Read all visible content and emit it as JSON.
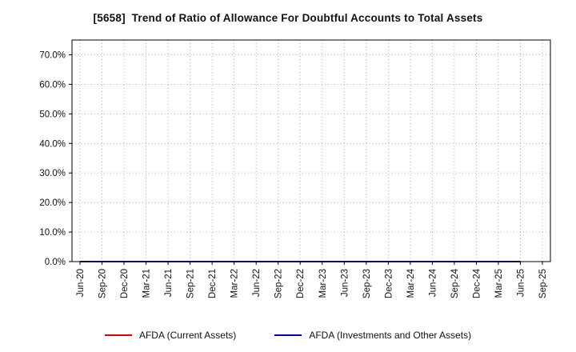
{
  "chart_data": {
    "type": "line",
    "title": "[5658]  Trend of Ratio of Allowance For Doubtful Accounts to Total Assets",
    "xlabel": "",
    "ylabel": "",
    "ylim": [
      0,
      75
    ],
    "yticks": [
      0,
      10,
      20,
      30,
      40,
      50,
      60,
      70
    ],
    "ytick_labels": [
      "0.0%",
      "10.0%",
      "20.0%",
      "30.0%",
      "40.0%",
      "50.0%",
      "60.0%",
      "70.0%"
    ],
    "grid": true,
    "grid_style": "dotted",
    "grid_color": "#aaaaaa",
    "legend_position": "bottom",
    "categories": [
      "Jun-20",
      "Sep-20",
      "Dec-20",
      "Mar-21",
      "Jun-21",
      "Sep-21",
      "Dec-21",
      "Mar-22",
      "Jun-22",
      "Sep-22",
      "Dec-22",
      "Mar-23",
      "Jun-23",
      "Sep-23",
      "Dec-23",
      "Mar-24",
      "Jun-24",
      "Sep-24",
      "Dec-24",
      "Mar-25",
      "Jun-25",
      "Sep-25"
    ],
    "series": [
      {
        "name": "AFDA (Current Assets)",
        "color": "#dd0000",
        "values": [
          0.0,
          0.0,
          0.0,
          0.0,
          0.0,
          0.0,
          0.0,
          0.0,
          0.0,
          0.0,
          0.0,
          0.0,
          0.0,
          0.0,
          0.0,
          0.0,
          0.0,
          0.0,
          0.0,
          0.0,
          0.0,
          null
        ]
      },
      {
        "name": "AFDA (Investments and Other Assets)",
        "color": "#0000bb",
        "values": [
          0.0,
          0.0,
          0.0,
          0.0,
          0.0,
          0.0,
          0.0,
          0.0,
          0.0,
          0.0,
          0.0,
          0.0,
          0.0,
          0.0,
          0.0,
          0.0,
          0.0,
          0.0,
          0.0,
          0.0,
          0.0,
          null
        ]
      }
    ]
  }
}
